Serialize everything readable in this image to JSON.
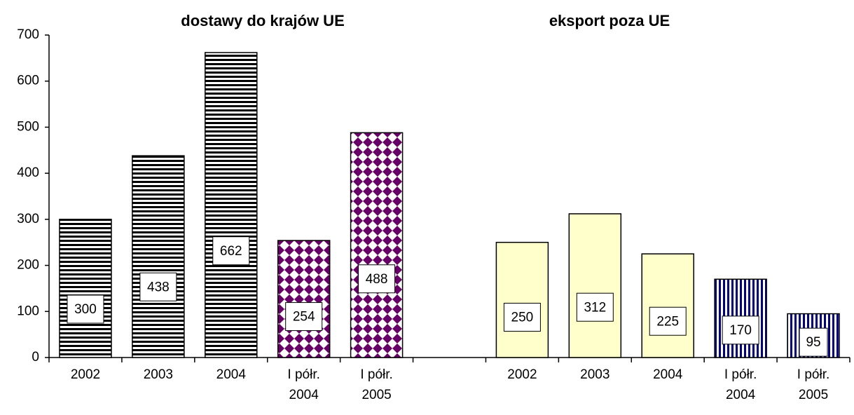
{
  "chart_data": {
    "type": "bar",
    "titles": [
      "dostawy do krajów UE",
      "eksport poza UE"
    ],
    "categories": [
      "2002",
      "2003",
      "2004",
      "I półr.\n2004",
      "I półr.\n2005",
      null,
      "2002",
      "2003",
      "2004",
      "I półr.\n2004",
      "I półr.\n2005"
    ],
    "values": [
      300,
      438,
      662,
      254,
      488,
      null,
      250,
      312,
      225,
      170,
      95
    ],
    "patterns": [
      "horizontal-stripes",
      "horizontal-stripes",
      "horizontal-stripes",
      "diamonds",
      "diamonds",
      null,
      "solid",
      "solid",
      "solid",
      "vertical-stripes",
      "vertical-stripes"
    ],
    "colors": [
      "#000000",
      "#000000",
      "#000000",
      "#660066",
      "#660066",
      null,
      "#ffffcc",
      "#ffffcc",
      "#ffffcc",
      "#000080",
      "#000080"
    ],
    "ylim": [
      0,
      700
    ],
    "yticks": [
      0,
      100,
      200,
      300,
      400,
      500,
      600,
      700
    ]
  }
}
